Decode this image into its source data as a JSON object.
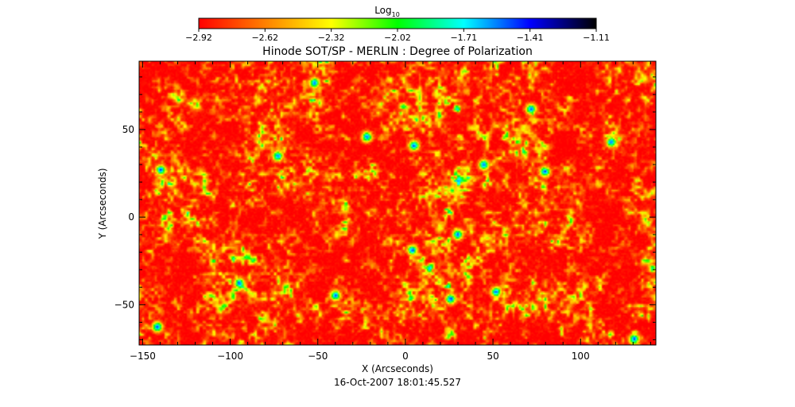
{
  "chart_data": {
    "type": "heatmap",
    "title": "Hinode SOT/SP - MERLIN : Degree of Polarization",
    "xlabel": "X (Arcseconds)",
    "ylabel": "Y (Arcseconds)",
    "timestamp": "16-Oct-2007 18:01:45.527",
    "xlim": [
      -152,
      143
    ],
    "ylim": [
      -73,
      89
    ],
    "x_ticks": [
      -150,
      -100,
      -50,
      0,
      50,
      100
    ],
    "y_ticks": [
      -50,
      0,
      50
    ],
    "colorbar": {
      "label": "Log",
      "label_subscript": "10",
      "range": [
        -2.92,
        -1.11
      ],
      "tick_labels": [
        "-2.92",
        "-2.62",
        "-2.32",
        "-2.02",
        "-1.71",
        "-1.41",
        "-1.11"
      ],
      "colormap": [
        "#ff0000",
        "#ff8000",
        "#ffff00",
        "#00ff00",
        "#00ffff",
        "#0000ff",
        "#000000"
      ]
    },
    "strong_polarization_features": [
      {
        "x": 45,
        "y": 30
      },
      {
        "x": 80,
        "y": 26
      },
      {
        "x": -52,
        "y": 77
      },
      {
        "x": 26,
        "y": -47
      },
      {
        "x": 52,
        "y": -43
      },
      {
        "x": -40,
        "y": -45
      },
      {
        "x": -142,
        "y": -63
      },
      {
        "x": 131,
        "y": -70
      },
      {
        "x": -140,
        "y": 27
      },
      {
        "x": -73,
        "y": 35
      },
      {
        "x": 4,
        "y": -19
      },
      {
        "x": 30,
        "y": -10
      },
      {
        "x": 118,
        "y": 43
      },
      {
        "x": 72,
        "y": 62
      },
      {
        "x": -95,
        "y": -38
      },
      {
        "x": -22,
        "y": 46
      },
      {
        "x": 5,
        "y": 41
      }
    ]
  }
}
